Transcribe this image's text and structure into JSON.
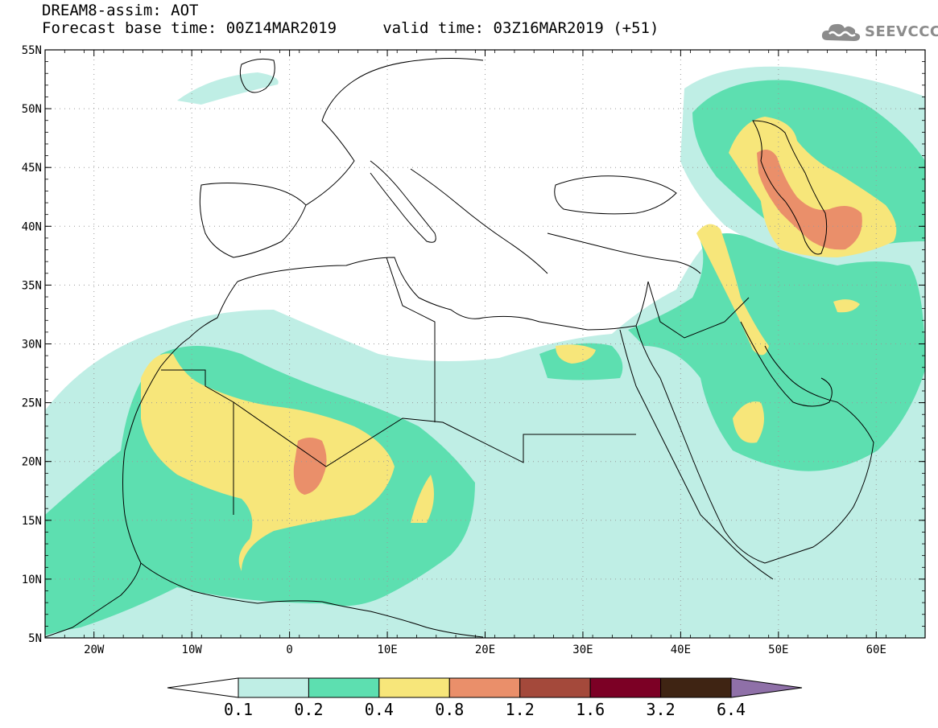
{
  "header": {
    "line1": "DREAM8-assim: AOT",
    "line2": "Forecast base time: 00Z14MAR2019     valid time: 03Z16MAR2019 (+51)"
  },
  "logo": {
    "text": "SEEVCCC",
    "icon": "cloud-logo-icon",
    "color": "#8c8c8c"
  },
  "map": {
    "lon_range": [
      -25,
      65
    ],
    "lat_range": [
      5,
      55
    ],
    "lon_ticks": [
      {
        "value": -20,
        "label": "20W"
      },
      {
        "value": -10,
        "label": "10W"
      },
      {
        "value": 0,
        "label": "0"
      },
      {
        "value": 10,
        "label": "10E"
      },
      {
        "value": 20,
        "label": "20E"
      },
      {
        "value": 30,
        "label": "30E"
      },
      {
        "value": 40,
        "label": "40E"
      },
      {
        "value": 50,
        "label": "50E"
      },
      {
        "value": 60,
        "label": "60E"
      }
    ],
    "lat_ticks": [
      {
        "value": 55,
        "label": "55N"
      },
      {
        "value": 50,
        "label": "50N"
      },
      {
        "value": 45,
        "label": "45N"
      },
      {
        "value": 40,
        "label": "40N"
      },
      {
        "value": 35,
        "label": "35N"
      },
      {
        "value": 30,
        "label": "30N"
      },
      {
        "value": 25,
        "label": "25N"
      },
      {
        "value": 20,
        "label": "20N"
      },
      {
        "value": 15,
        "label": "15N"
      },
      {
        "value": 10,
        "label": "10N"
      },
      {
        "value": 5,
        "label": "5N"
      }
    ],
    "grid": true
  },
  "colorbar": {
    "levels": [
      "0.1",
      "0.2",
      "0.4",
      "0.8",
      "1.2",
      "1.6",
      "3.2",
      "6.4"
    ],
    "colors": [
      "#ffffff",
      "#bfeee5",
      "#5ddfb0",
      "#f7e67a",
      "#ea8f6a",
      "#a4493b",
      "#7c0025",
      "#3f2413",
      "#8f70a8"
    ]
  }
}
